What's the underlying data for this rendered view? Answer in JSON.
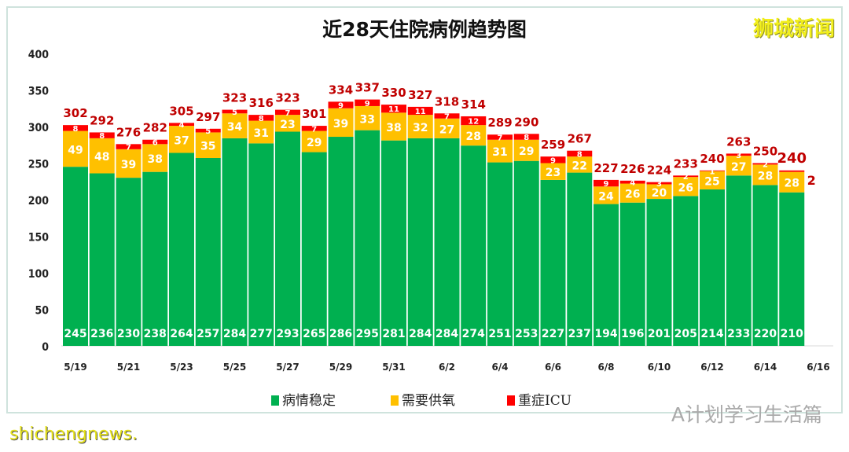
{
  "watermarks": {
    "top_right": "狮城新闻",
    "bottom_right": "A计划学习生活篇",
    "bottom_left": "shichengnews."
  },
  "chart_data": {
    "type": "bar",
    "stacked": true,
    "title": "近28天住院病例趋势图",
    "xlabel": "",
    "ylabel": "",
    "ylim": [
      0,
      400
    ],
    "yticks": [
      0,
      50,
      100,
      150,
      200,
      250,
      300,
      350,
      400
    ],
    "categories": [
      "5/19",
      "5/20",
      "5/21",
      "5/22",
      "5/23",
      "5/24",
      "5/25",
      "5/26",
      "5/27",
      "5/28",
      "5/29",
      "5/30",
      "5/31",
      "6/1",
      "6/2",
      "6/3",
      "6/4",
      "6/5",
      "6/6",
      "6/7",
      "6/8",
      "6/9",
      "6/10",
      "6/11",
      "6/12",
      "6/13",
      "6/14",
      "6/15"
    ],
    "xtick_labels": [
      "5/19",
      "5/21",
      "5/23",
      "5/25",
      "5/27",
      "5/29",
      "5/31",
      "6/2",
      "6/4",
      "6/6",
      "6/8",
      "6/10",
      "6/12",
      "6/14",
      "6/16"
    ],
    "series": [
      {
        "name": "病情稳定",
        "color": "#00b050",
        "values": [
          245,
          236,
          230,
          238,
          264,
          257,
          284,
          277,
          293,
          265,
          286,
          295,
          281,
          284,
          284,
          274,
          251,
          253,
          227,
          237,
          194,
          196,
          201,
          205,
          214,
          233,
          220,
          210
        ]
      },
      {
        "name": "需要供氧",
        "color": "#ffc000",
        "values": [
          49,
          48,
          39,
          38,
          37,
          35,
          34,
          31,
          23,
          29,
          39,
          33,
          38,
          32,
          27,
          28,
          31,
          29,
          23,
          22,
          24,
          26,
          20,
          26,
          25,
          27,
          28,
          28
        ]
      },
      {
        "name": "重症ICU",
        "color": "#ff0000",
        "values": [
          8,
          8,
          7,
          6,
          4,
          5,
          5,
          8,
          7,
          7,
          9,
          9,
          11,
          11,
          7,
          12,
          7,
          8,
          9,
          8,
          9,
          4,
          3,
          2,
          1,
          3,
          2,
          2
        ]
      }
    ],
    "totals": [
      302,
      292,
      276,
      282,
      305,
      297,
      323,
      316,
      323,
      301,
      334,
      337,
      330,
      327,
      318,
      314,
      289,
      290,
      259,
      267,
      227,
      226,
      224,
      233,
      240,
      263,
      250,
      240
    ],
    "total_label_color": "#c00000",
    "legend": "bottom",
    "grid": false
  }
}
